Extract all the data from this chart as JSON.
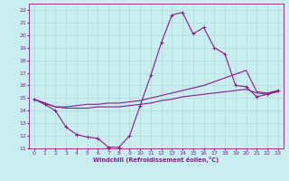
{
  "xlabel": "Windchill (Refroidissement éolien,°C)",
  "bg_color": "#c8eef0",
  "grid_color": "#b0d8da",
  "line_color": "#8b1a8b",
  "xlim": [
    -0.5,
    23.5
  ],
  "ylim": [
    11,
    22.5
  ],
  "xticks": [
    0,
    1,
    2,
    3,
    4,
    5,
    6,
    7,
    8,
    9,
    10,
    11,
    12,
    13,
    14,
    15,
    16,
    17,
    18,
    19,
    20,
    21,
    22,
    23
  ],
  "yticks": [
    11,
    12,
    13,
    14,
    15,
    16,
    17,
    18,
    19,
    20,
    21,
    22
  ],
  "series0_x": [
    0,
    1,
    2,
    3,
    4,
    5,
    6,
    7,
    8,
    9,
    10,
    11,
    12,
    13,
    14,
    15,
    16,
    17,
    18,
    19,
    20,
    21,
    22,
    23
  ],
  "series0_y": [
    14.9,
    14.5,
    14.0,
    12.7,
    12.1,
    11.9,
    11.8,
    11.1,
    11.1,
    12.0,
    14.4,
    16.8,
    19.4,
    21.6,
    21.8,
    20.1,
    20.6,
    19.0,
    18.5,
    16.0,
    15.9,
    15.1,
    15.3,
    15.6
  ],
  "series1_x": [
    0,
    1,
    2,
    3,
    4,
    5,
    6,
    7,
    8,
    9,
    10,
    11,
    12,
    13,
    14,
    15,
    16,
    17,
    18,
    19,
    20,
    21,
    22,
    23
  ],
  "series1_y": [
    14.9,
    14.6,
    14.3,
    14.2,
    14.2,
    14.2,
    14.3,
    14.3,
    14.3,
    14.4,
    14.5,
    14.6,
    14.8,
    14.9,
    15.1,
    15.2,
    15.3,
    15.4,
    15.5,
    15.6,
    15.7,
    15.4,
    15.3,
    15.5
  ],
  "series2_x": [
    0,
    1,
    2,
    3,
    4,
    5,
    6,
    7,
    8,
    9,
    10,
    11,
    12,
    13,
    14,
    15,
    16,
    17,
    18,
    19,
    20,
    21,
    22,
    23
  ],
  "series2_y": [
    14.9,
    14.6,
    14.3,
    14.3,
    14.4,
    14.5,
    14.5,
    14.6,
    14.6,
    14.7,
    14.8,
    15.0,
    15.2,
    15.4,
    15.6,
    15.8,
    16.0,
    16.3,
    16.6,
    16.9,
    17.2,
    15.5,
    15.4,
    15.6
  ]
}
